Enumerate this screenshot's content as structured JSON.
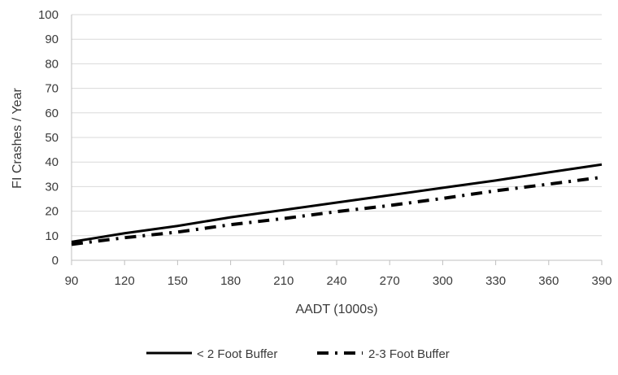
{
  "chart_data": {
    "type": "line",
    "title": "",
    "xlabel": "AADT (1000s)",
    "ylabel": "FI Crashes / Year",
    "x": [
      90,
      120,
      150,
      180,
      210,
      240,
      270,
      300,
      330,
      360,
      390
    ],
    "xticks": [
      "90",
      "120",
      "150",
      "180",
      "210",
      "240",
      "270",
      "300",
      "330",
      "360",
      "390"
    ],
    "yticks": [
      "0",
      "10",
      "20",
      "30",
      "40",
      "50",
      "60",
      "70",
      "80",
      "90",
      "100"
    ],
    "xlim": [
      90,
      390
    ],
    "ylim": [
      0,
      100
    ],
    "grid": true,
    "legend_position": "bottom",
    "series": [
      {
        "name": "< 2 Foot Buffer",
        "style": "solid",
        "values": [
          7.5,
          11,
          14,
          17.5,
          20.5,
          23.5,
          26.5,
          29.5,
          32.5,
          35.8,
          39
        ]
      },
      {
        "name": "2-3 Foot Buffer",
        "style": "dash-dot",
        "values": [
          6.5,
          9.2,
          11.5,
          14.5,
          17,
          19.8,
          22.3,
          25.2,
          28.3,
          31,
          33.8
        ]
      }
    ]
  }
}
